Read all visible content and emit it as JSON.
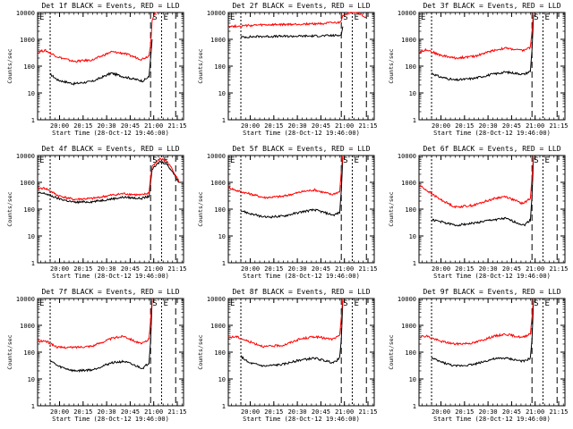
{
  "figure": {
    "xlabel": "Start Time (28-Oct-12 19:46:00)",
    "ylabel": "Counts/sec",
    "x_tick_labels": [
      "20:00",
      "20:15",
      "20:30",
      "20:45",
      "21:00",
      "21:15"
    ],
    "y_tick_labels": [
      "1",
      "10",
      "100",
      "1000",
      "10000"
    ]
  },
  "colors": {
    "events": "#000000",
    "lld": "#ff0000",
    "axes": "#000000"
  },
  "chart_data": [
    {
      "type": "line",
      "title": "Det 1f BLACK = Events, RED = LLD",
      "letters": [
        "E",
        "S",
        "E"
      ],
      "ylim": [
        1,
        10000
      ],
      "xlim_minutes": [
        0,
        93
      ],
      "series": [
        {
          "name": "Events",
          "color": "#000000",
          "segments": [
            [
              8,
              50
            ],
            [
              13,
              30
            ],
            [
              23,
              22
            ],
            [
              35,
              27
            ],
            [
              47,
              55
            ],
            [
              55,
              40
            ],
            [
              67,
              28
            ],
            [
              71,
              40
            ],
            [
              72,
              200
            ],
            [
              73,
              1000
            ]
          ]
        },
        {
          "name": "LLD",
          "color": "#ff0000",
          "segments": [
            [
              0,
              350
            ],
            [
              5,
              380
            ],
            [
              13,
              220
            ],
            [
              23,
              150
            ],
            [
              35,
              170
            ],
            [
              47,
              340
            ],
            [
              55,
              300
            ],
            [
              66,
              180
            ],
            [
              71,
              240
            ],
            [
              72,
              600
            ],
            [
              73,
              5000
            ],
            [
              75,
              11000
            ],
            [
              76,
              12000
            ]
          ]
        }
      ]
    },
    {
      "type": "line",
      "title": "Det 2f BLACK = Events, RED = LLD",
      "letters": [
        "E",
        "S",
        "E"
      ],
      "ylim": [
        1,
        10000
      ],
      "xlim_minutes": [
        0,
        93
      ],
      "series": [
        {
          "name": "Events",
          "color": "#000000",
          "segments": [
            [
              8,
              1200
            ],
            [
              20,
              1280
            ],
            [
              40,
              1300
            ],
            [
              60,
              1350
            ],
            [
              71,
              1400
            ],
            [
              72,
              1500
            ],
            [
              73,
              3000
            ]
          ]
        },
        {
          "name": "LLD",
          "color": "#ff0000",
          "segments": [
            [
              0,
              3000
            ],
            [
              5,
              3100
            ],
            [
              20,
              3400
            ],
            [
              40,
              3600
            ],
            [
              60,
              3900
            ],
            [
              71,
              4200
            ],
            [
              72,
              5000
            ],
            [
              73,
              8000
            ],
            [
              80,
              11000
            ],
            [
              84,
              9000
            ],
            [
              88,
              6000
            ]
          ]
        }
      ]
    },
    {
      "type": "line",
      "title": "Det 3f BLACK = Events, RED = LLD",
      "letters": [
        "E",
        "S",
        "E"
      ],
      "ylim": [
        1,
        10000
      ],
      "xlim_minutes": [
        0,
        93
      ],
      "series": [
        {
          "name": "Events",
          "color": "#000000",
          "segments": [
            [
              8,
              55
            ],
            [
              13,
              40
            ],
            [
              23,
              30
            ],
            [
              35,
              35
            ],
            [
              47,
              50
            ],
            [
              55,
              60
            ],
            [
              67,
              50
            ],
            [
              71,
              65
            ],
            [
              72,
              400
            ],
            [
              73,
              8000
            ]
          ]
        },
        {
          "name": "LLD",
          "color": "#ff0000",
          "segments": [
            [
              0,
              330
            ],
            [
              5,
              420
            ],
            [
              13,
              260
            ],
            [
              23,
              200
            ],
            [
              35,
              230
            ],
            [
              47,
              380
            ],
            [
              55,
              470
            ],
            [
              66,
              380
            ],
            [
              71,
              500
            ],
            [
              72,
              2000
            ],
            [
              73,
              12000
            ]
          ]
        }
      ]
    },
    {
      "type": "line",
      "title": "Det 4f BLACK = Events, RED = LLD",
      "letters": [
        "E",
        "S",
        "E"
      ],
      "ylim": [
        1,
        10000
      ],
      "xlim_minutes": [
        0,
        93
      ],
      "series": [
        {
          "name": "Events",
          "color": "#000000",
          "segments": [
            [
              0,
              400
            ],
            [
              5,
              380
            ],
            [
              13,
              250
            ],
            [
              23,
              180
            ],
            [
              35,
              190
            ],
            [
              47,
              240
            ],
            [
              55,
              280
            ],
            [
              66,
              250
            ],
            [
              71,
              300
            ],
            [
              72,
              1000
            ],
            [
              73,
              3000
            ],
            [
              78,
              6000
            ],
            [
              82,
              5000
            ],
            [
              86,
              2500
            ],
            [
              90,
              1000
            ]
          ]
        },
        {
          "name": "LLD",
          "color": "#ff0000",
          "segments": [
            [
              0,
              600
            ],
            [
              5,
              600
            ],
            [
              13,
              320
            ],
            [
              23,
              230
            ],
            [
              35,
              250
            ],
            [
              47,
              330
            ],
            [
              55,
              380
            ],
            [
              66,
              330
            ],
            [
              71,
              400
            ],
            [
              72,
              1500
            ],
            [
              73,
              4000
            ],
            [
              78,
              7500
            ],
            [
              82,
              6500
            ],
            [
              86,
              3000
            ],
            [
              90,
              1100
            ]
          ]
        }
      ]
    },
    {
      "type": "line",
      "title": "Det 5f BLACK = Events, RED = LLD",
      "letters": [
        "E",
        "S",
        "E"
      ],
      "ylim": [
        1,
        10000
      ],
      "xlim_minutes": [
        0,
        93
      ],
      "series": [
        {
          "name": "Events",
          "color": "#000000",
          "segments": [
            [
              8,
              90
            ],
            [
              13,
              70
            ],
            [
              23,
              50
            ],
            [
              35,
              55
            ],
            [
              47,
              80
            ],
            [
              55,
              95
            ],
            [
              67,
              60
            ],
            [
              71,
              75
            ],
            [
              72,
              500
            ],
            [
              73,
              9000
            ]
          ]
        },
        {
          "name": "LLD",
          "color": "#ff0000",
          "segments": [
            [
              0,
              650
            ],
            [
              5,
              500
            ],
            [
              13,
              380
            ],
            [
              23,
              270
            ],
            [
              35,
              300
            ],
            [
              47,
              450
            ],
            [
              55,
              520
            ],
            [
              66,
              350
            ],
            [
              71,
              450
            ],
            [
              72,
              2500
            ],
            [
              73,
              12000
            ]
          ]
        }
      ]
    },
    {
      "type": "line",
      "title": "Det 6f BLACK = Events, RED = LLD",
      "letters": [
        "S",
        "E"
      ],
      "ylim": [
        1,
        10000
      ],
      "xlim_minutes": [
        0,
        93
      ],
      "series": [
        {
          "name": "Events",
          "color": "#000000",
          "segments": [
            [
              8,
              40
            ],
            [
              13,
              35
            ],
            [
              23,
              25
            ],
            [
              35,
              30
            ],
            [
              47,
              40
            ],
            [
              55,
              45
            ],
            [
              67,
              25
            ],
            [
              71,
              40
            ],
            [
              72,
              300
            ],
            [
              73,
              9000
            ]
          ]
        },
        {
          "name": "LLD",
          "color": "#ff0000",
          "segments": [
            [
              0,
              800
            ],
            [
              5,
              500
            ],
            [
              13,
              240
            ],
            [
              23,
              120
            ],
            [
              35,
              140
            ],
            [
              47,
              240
            ],
            [
              55,
              300
            ],
            [
              66,
              160
            ],
            [
              71,
              250
            ],
            [
              72,
              1500
            ],
            [
              73,
              12000
            ]
          ]
        }
      ]
    },
    {
      "type": "line",
      "title": "Det 7f BLACK = Events, RED = LLD",
      "letters": [
        "E",
        "S",
        "E"
      ],
      "ylim": [
        1,
        10000
      ],
      "xlim_minutes": [
        0,
        93
      ],
      "series": [
        {
          "name": "Events",
          "color": "#000000",
          "segments": [
            [
              8,
              50
            ],
            [
              13,
              30
            ],
            [
              23,
              20
            ],
            [
              35,
              22
            ],
            [
              47,
              40
            ],
            [
              55,
              45
            ],
            [
              67,
              25
            ],
            [
              71,
              40
            ],
            [
              72,
              250
            ],
            [
              73,
              9000
            ]
          ]
        },
        {
          "name": "LLD",
          "color": "#ff0000",
          "segments": [
            [
              0,
              250
            ],
            [
              5,
              260
            ],
            [
              13,
              150
            ],
            [
              23,
              150
            ],
            [
              35,
              170
            ],
            [
              47,
              320
            ],
            [
              55,
              400
            ],
            [
              66,
              200
            ],
            [
              71,
              300
            ],
            [
              72,
              1500
            ],
            [
              73,
              12000
            ]
          ]
        }
      ]
    },
    {
      "type": "line",
      "title": "Det 8f BLACK = Events, RED = LLD",
      "letters": [
        "E",
        "S",
        "E"
      ],
      "ylim": [
        1,
        10000
      ],
      "xlim_minutes": [
        0,
        93
      ],
      "series": [
        {
          "name": "Events",
          "color": "#000000",
          "segments": [
            [
              8,
              70
            ],
            [
              13,
              40
            ],
            [
              23,
              30
            ],
            [
              35,
              35
            ],
            [
              45,
              50
            ],
            [
              55,
              60
            ],
            [
              67,
              40
            ],
            [
              71,
              60
            ],
            [
              72,
              300
            ],
            [
              73,
              9000
            ]
          ]
        },
        {
          "name": "LLD",
          "color": "#ff0000",
          "segments": [
            [
              0,
              350
            ],
            [
              5,
              380
            ],
            [
              13,
              250
            ],
            [
              23,
              160
            ],
            [
              35,
              180
            ],
            [
              45,
              300
            ],
            [
              55,
              380
            ],
            [
              66,
              300
            ],
            [
              71,
              400
            ],
            [
              72,
              2000
            ],
            [
              73,
              12000
            ]
          ]
        }
      ]
    },
    {
      "type": "line",
      "title": "Det 9f BLACK = Events, RED = LLD",
      "letters": [
        "S",
        "E"
      ],
      "ylim": [
        1,
        10000
      ],
      "xlim_minutes": [
        0,
        93
      ],
      "series": [
        {
          "name": "Events",
          "color": "#000000",
          "segments": [
            [
              8,
              60
            ],
            [
              13,
              45
            ],
            [
              23,
              30
            ],
            [
              35,
              35
            ],
            [
              47,
              55
            ],
            [
              55,
              60
            ],
            [
              67,
              45
            ],
            [
              71,
              60
            ],
            [
              72,
              300
            ],
            [
              73,
              9000
            ]
          ]
        },
        {
          "name": "LLD",
          "color": "#ff0000",
          "segments": [
            [
              0,
              380
            ],
            [
              5,
              400
            ],
            [
              13,
              260
            ],
            [
              23,
              200
            ],
            [
              35,
              220
            ],
            [
              47,
              380
            ],
            [
              55,
              470
            ],
            [
              66,
              350
            ],
            [
              71,
              500
            ],
            [
              72,
              2000
            ],
            [
              73,
              12000
            ]
          ]
        }
      ]
    }
  ]
}
